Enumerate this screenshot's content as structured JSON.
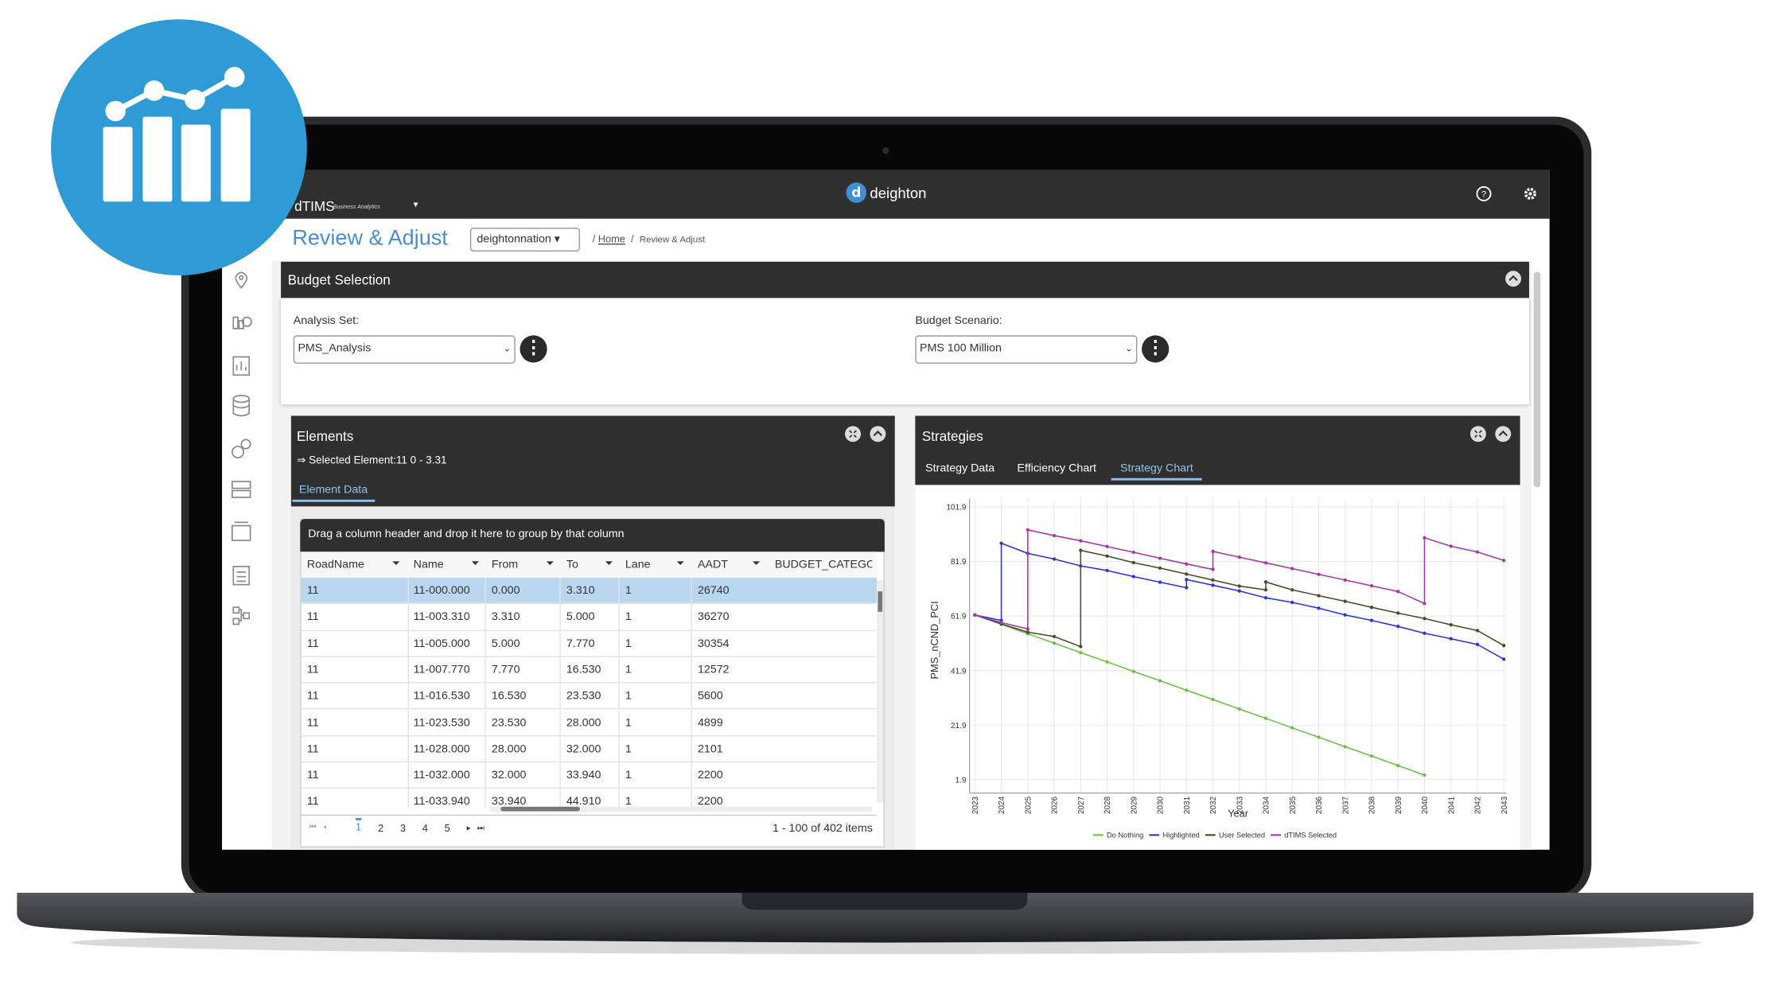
{
  "app": {
    "brand": "dTIMS",
    "brand_sub": "Business Analytics",
    "company": "deighton"
  },
  "header": {
    "title": "Review & Adjust",
    "org": "deightonnation",
    "breadcrumb": [
      "Home",
      "Review & Adjust"
    ]
  },
  "budget_selection": {
    "title": "Budget Selection",
    "analysis_set_label": "Analysis Set:",
    "analysis_set": "PMS_Analysis",
    "scenario_label": "Budget Scenario:",
    "scenario": "PMS 100 Million"
  },
  "elements": {
    "title": "Elements",
    "selected": "⇒ Selected Element:11 0 - 3.31",
    "tab": "Element Data",
    "group_hint": "Drag a column header and drop it here to group by that column",
    "table": {
      "columns": [
        "RoadName",
        "Name",
        "From",
        "To",
        "Lane",
        "AADT",
        "BUDGET_CATEGORY"
      ],
      "rows": [
        [
          "11",
          "11-000.000",
          "0.000",
          "3.310",
          "1",
          "26740"
        ],
        [
          "11",
          "11-003.310",
          "3.310",
          "5.000",
          "1",
          "36270"
        ],
        [
          "11",
          "11-005.000",
          "5.000",
          "7.770",
          "1",
          "30354"
        ],
        [
          "11",
          "11-007.770",
          "7.770",
          "16.530",
          "1",
          "12572"
        ],
        [
          "11",
          "11-016.530",
          "16.530",
          "23.530",
          "1",
          "5600"
        ],
        [
          "11",
          "11-023.530",
          "23.530",
          "28.000",
          "1",
          "4899"
        ],
        [
          "11",
          "11-028.000",
          "28.000",
          "32.000",
          "1",
          "2101"
        ],
        [
          "11",
          "11-032.000",
          "32.000",
          "33.940",
          "1",
          "2200"
        ],
        [
          "11",
          "11-033.940",
          "33.940",
          "44.910",
          "1",
          "2200"
        ]
      ]
    },
    "pager": {
      "pages": [
        1,
        2,
        3,
        4,
        5
      ],
      "summary": "1 - 100 of 402 items"
    }
  },
  "strategies": {
    "title": "Strategies",
    "tabs": [
      "Strategy Data",
      "Efficiency Chart",
      "Strategy Chart"
    ]
  },
  "chart_data": {
    "type": "line",
    "y_label": "PMS_nCND_PCI",
    "x_label": "Year",
    "xlim": [
      2022.8,
      2043.1
    ],
    "xticks": [
      2023,
      2024,
      2025,
      2026,
      2027,
      2028,
      2029,
      2030,
      2031,
      2032,
      2033,
      2034,
      2035,
      2036,
      2037,
      2038,
      2039,
      2040,
      2041,
      2042,
      2043
    ],
    "ylim": [
      -3,
      105
    ],
    "yticks": [
      1.9,
      21.9,
      41.9,
      61.9,
      81.9,
      101.9
    ],
    "grid": true,
    "legend": "bottom",
    "series": [
      {
        "name": "Do Nothing",
        "color": "#6cc04a",
        "x": [
          2023,
          2024,
          2025,
          2026,
          2027,
          2028,
          2029,
          2030,
          2031,
          2032,
          2033,
          2034,
          2035,
          2036,
          2037,
          2038,
          2039,
          2040
        ],
        "values": [
          62.3,
          58.9,
          55.4,
          52.0,
          48.5,
          45.1,
          41.6,
          38.2,
          34.7,
          31.3,
          27.8,
          24.4,
          20.9,
          17.5,
          14.0,
          10.6,
          7.1,
          3.6
        ]
      },
      {
        "name": "Highlighted",
        "color": "#2b38c9",
        "x": [
          2023,
          2024,
          2024,
          2025,
          2026,
          2027,
          2028,
          2029,
          2030,
          2031,
          2031,
          2032,
          2033,
          2034,
          2035,
          2036,
          2037,
          2038,
          2039,
          2040,
          2041,
          2042,
          2043
        ],
        "values": [
          62.3,
          60.3,
          88.6,
          84.9,
          82.8,
          80.3,
          78.6,
          76.4,
          74.3,
          72.3,
          75.3,
          73.2,
          71.1,
          68.6,
          66.9,
          64.8,
          62.3,
          60.3,
          58.1,
          55.6,
          53.6,
          51.5,
          46.1
        ]
      },
      {
        "name": "User Selected",
        "color": "#4a4a2a",
        "x": [
          2023,
          2024,
          2025,
          2026,
          2027,
          2027,
          2028,
          2029,
          2030,
          2031,
          2032,
          2033,
          2034,
          2034,
          2035,
          2036,
          2037,
          2038,
          2039,
          2040,
          2041,
          2042,
          2043
        ],
        "values": [
          62.3,
          59.0,
          56.0,
          54.4,
          50.7,
          86.0,
          83.9,
          81.5,
          79.5,
          77.3,
          75.1,
          72.9,
          71.5,
          74.4,
          71.5,
          69.4,
          67.3,
          65.1,
          63.0,
          61.0,
          58.7,
          56.6,
          51.1
        ]
      },
      {
        "name": "dTIMS Selected",
        "color": "#a43aa8",
        "x": [
          2023,
          2024,
          2025,
          2025,
          2026,
          2027,
          2028,
          2029,
          2030,
          2031,
          2032,
          2032,
          2033,
          2034,
          2035,
          2036,
          2037,
          2038,
          2039,
          2040,
          2040,
          2041,
          2042,
          2043
        ],
        "values": [
          62.3,
          59.5,
          57.2,
          93.5,
          91.4,
          89.5,
          87.4,
          85.3,
          83.1,
          81.0,
          79.0,
          85.6,
          83.5,
          81.4,
          79.3,
          77.2,
          75.1,
          73.0,
          70.9,
          66.5,
          90.6,
          87.5,
          85.4,
          82.3
        ]
      }
    ]
  }
}
